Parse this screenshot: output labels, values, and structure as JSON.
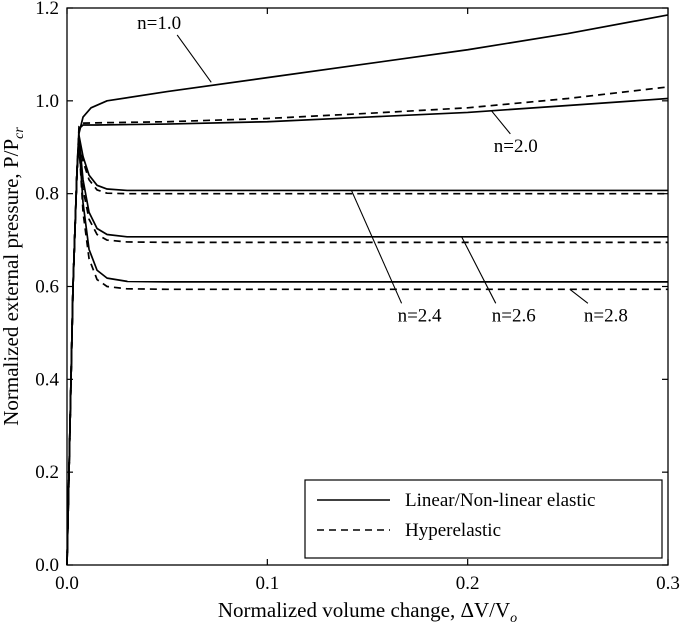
{
  "chart_data": {
    "type": "line",
    "xlabel": "Normalized volume change, ΔV/V",
    "xlabel_sub": "o",
    "ylabel": "Normalized external pressure, P/P",
    "ylabel_sub": "cr",
    "xlim": [
      0,
      0.3
    ],
    "ylim": [
      0,
      1.2
    ],
    "x_ticks": [
      0,
      0.1,
      0.2,
      0.3
    ],
    "x_tick_labels": [
      "0.0",
      "0.1",
      "0.2",
      "0.3"
    ],
    "y_ticks": [
      0,
      0.2,
      0.4,
      0.6,
      0.8,
      1.0,
      1.2
    ],
    "y_tick_labels": [
      "0.0",
      "0.2",
      "0.4",
      "0.6",
      "0.8",
      "1.0",
      "1.2"
    ],
    "grid": false,
    "legend_position": "bottom-right",
    "legend": [
      {
        "label": "Linear/Non-linear elastic",
        "style": "solid"
      },
      {
        "label": "Hyperelastic",
        "style": "dashed"
      }
    ],
    "series": [
      {
        "group": "n=1.0",
        "style": "solid",
        "points": [
          [
            0,
            0
          ],
          [
            0.003,
            0.6
          ],
          [
            0.005,
            0.85
          ],
          [
            0.006,
            0.93
          ],
          [
            0.008,
            0.965
          ],
          [
            0.012,
            0.985
          ],
          [
            0.02,
            1.0
          ],
          [
            0.05,
            1.02
          ],
          [
            0.1,
            1.05
          ],
          [
            0.15,
            1.08
          ],
          [
            0.2,
            1.11
          ],
          [
            0.25,
            1.145
          ],
          [
            0.3,
            1.185
          ]
        ]
      },
      {
        "group": "n=2.0",
        "style": "solid",
        "points": [
          [
            0,
            0
          ],
          [
            0.003,
            0.6
          ],
          [
            0.005,
            0.85
          ],
          [
            0.006,
            0.94
          ],
          [
            0.008,
            0.948
          ],
          [
            0.015,
            0.948
          ],
          [
            0.05,
            0.95
          ],
          [
            0.1,
            0.955
          ],
          [
            0.15,
            0.965
          ],
          [
            0.2,
            0.975
          ],
          [
            0.25,
            0.99
          ],
          [
            0.3,
            1.005
          ]
        ]
      },
      {
        "group": "n=2.0",
        "style": "dashed",
        "points": [
          [
            0,
            0
          ],
          [
            0.003,
            0.6
          ],
          [
            0.005,
            0.85
          ],
          [
            0.006,
            0.945
          ],
          [
            0.008,
            0.952
          ],
          [
            0.02,
            0.953
          ],
          [
            0.05,
            0.955
          ],
          [
            0.1,
            0.962
          ],
          [
            0.15,
            0.973
          ],
          [
            0.2,
            0.985
          ],
          [
            0.25,
            1.005
          ],
          [
            0.3,
            1.03
          ]
        ]
      },
      {
        "group": "n=2.4",
        "style": "solid",
        "points": [
          [
            0,
            0
          ],
          [
            0.003,
            0.6
          ],
          [
            0.005,
            0.85
          ],
          [
            0.006,
            0.925
          ],
          [
            0.008,
            0.88
          ],
          [
            0.011,
            0.84
          ],
          [
            0.015,
            0.818
          ],
          [
            0.02,
            0.81
          ],
          [
            0.03,
            0.807
          ],
          [
            0.05,
            0.807
          ],
          [
            0.1,
            0.807
          ],
          [
            0.2,
            0.807
          ],
          [
            0.3,
            0.807
          ]
        ]
      },
      {
        "group": "n=2.4",
        "style": "dashed",
        "points": [
          [
            0,
            0
          ],
          [
            0.003,
            0.6
          ],
          [
            0.005,
            0.85
          ],
          [
            0.006,
            0.92
          ],
          [
            0.008,
            0.87
          ],
          [
            0.011,
            0.83
          ],
          [
            0.015,
            0.808
          ],
          [
            0.02,
            0.801
          ],
          [
            0.03,
            0.8
          ],
          [
            0.05,
            0.8
          ],
          [
            0.1,
            0.8
          ],
          [
            0.2,
            0.8
          ],
          [
            0.3,
            0.8
          ]
        ]
      },
      {
        "group": "n=2.6",
        "style": "solid",
        "points": [
          [
            0,
            0
          ],
          [
            0.003,
            0.6
          ],
          [
            0.005,
            0.85
          ],
          [
            0.006,
            0.92
          ],
          [
            0.008,
            0.83
          ],
          [
            0.011,
            0.76
          ],
          [
            0.015,
            0.725
          ],
          [
            0.02,
            0.712
          ],
          [
            0.03,
            0.707
          ],
          [
            0.05,
            0.707
          ],
          [
            0.1,
            0.707
          ],
          [
            0.2,
            0.707
          ],
          [
            0.3,
            0.707
          ]
        ]
      },
      {
        "group": "n=2.6",
        "style": "dashed",
        "points": [
          [
            0,
            0
          ],
          [
            0.003,
            0.6
          ],
          [
            0.005,
            0.85
          ],
          [
            0.006,
            0.915
          ],
          [
            0.008,
            0.81
          ],
          [
            0.011,
            0.745
          ],
          [
            0.015,
            0.712
          ],
          [
            0.02,
            0.7
          ],
          [
            0.03,
            0.696
          ],
          [
            0.05,
            0.695
          ],
          [
            0.1,
            0.695
          ],
          [
            0.2,
            0.695
          ],
          [
            0.3,
            0.695
          ]
        ]
      },
      {
        "group": "n=2.8",
        "style": "solid",
        "points": [
          [
            0,
            0
          ],
          [
            0.003,
            0.6
          ],
          [
            0.005,
            0.85
          ],
          [
            0.006,
            0.91
          ],
          [
            0.008,
            0.78
          ],
          [
            0.011,
            0.68
          ],
          [
            0.015,
            0.635
          ],
          [
            0.02,
            0.618
          ],
          [
            0.03,
            0.611
          ],
          [
            0.05,
            0.61
          ],
          [
            0.1,
            0.61
          ],
          [
            0.2,
            0.61
          ],
          [
            0.3,
            0.61
          ]
        ]
      },
      {
        "group": "n=2.8",
        "style": "dashed",
        "points": [
          [
            0,
            0
          ],
          [
            0.003,
            0.6
          ],
          [
            0.005,
            0.85
          ],
          [
            0.006,
            0.905
          ],
          [
            0.008,
            0.76
          ],
          [
            0.011,
            0.66
          ],
          [
            0.015,
            0.615
          ],
          [
            0.02,
            0.6
          ],
          [
            0.03,
            0.595
          ],
          [
            0.05,
            0.594
          ],
          [
            0.1,
            0.594
          ],
          [
            0.2,
            0.594
          ],
          [
            0.3,
            0.594
          ]
        ]
      }
    ],
    "annotations": [
      {
        "text": "n=1.0",
        "label_at": [
          0.046,
          1.155
        ],
        "points_to": [
          0.072,
          1.04
        ]
      },
      {
        "text": "n=2.0",
        "label_at": [
          0.224,
          0.89
        ],
        "points_to": [
          0.212,
          0.978
        ]
      },
      {
        "text": "n=2.4",
        "label_at": [
          0.176,
          0.525
        ],
        "points_to": [
          0.142,
          0.807
        ]
      },
      {
        "text": "n=2.6",
        "label_at": [
          0.223,
          0.525
        ],
        "points_to": [
          0.197,
          0.707
        ]
      },
      {
        "text": "n=2.8",
        "label_at": [
          0.269,
          0.525
        ],
        "points_to": [
          0.251,
          0.594
        ]
      }
    ]
  }
}
